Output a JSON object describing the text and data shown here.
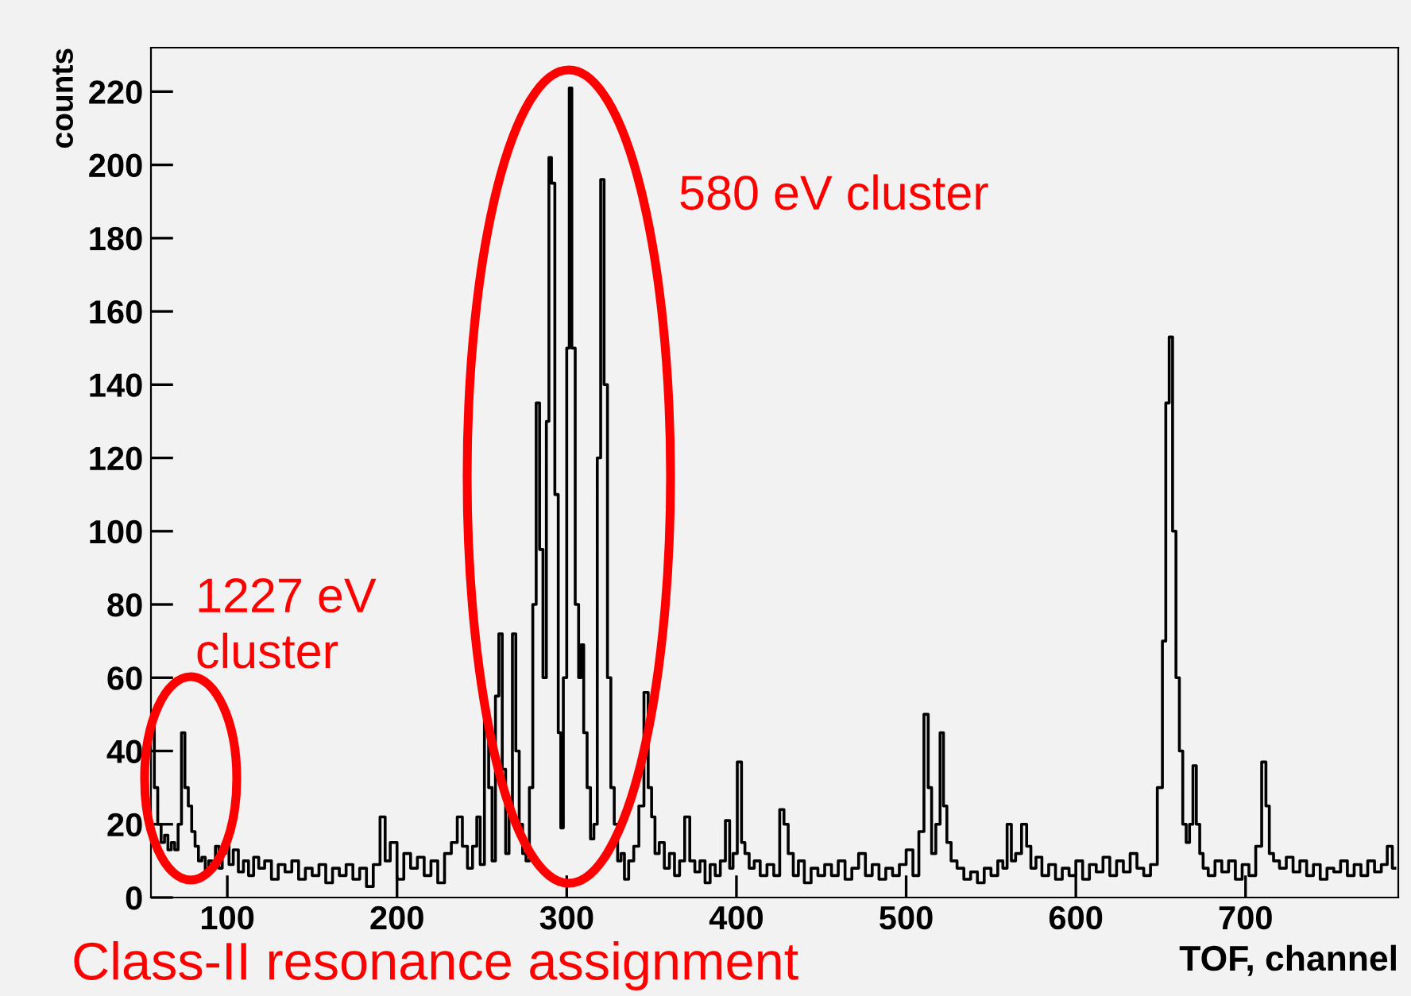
{
  "chart_data": {
    "type": "step",
    "xlabel": "TOF, channel",
    "ylabel": "counts",
    "x": [
      56,
      58,
      60,
      62,
      64,
      66,
      68,
      70,
      72,
      74,
      76,
      78,
      80,
      82,
      84,
      86,
      88,
      90,
      92,
      94,
      96,
      98,
      100,
      102,
      105,
      108,
      111,
      114,
      117,
      120,
      124,
      128,
      132,
      136,
      140,
      144,
      148,
      152,
      156,
      160,
      164,
      168,
      172,
      176,
      180,
      184,
      188,
      192,
      194,
      198,
      202,
      206,
      210,
      214,
      218,
      222,
      226,
      230,
      234,
      237,
      240,
      243,
      246,
      248,
      250,
      253,
      255,
      257,
      259,
      261,
      263,
      265,
      267,
      269,
      271,
      273,
      275,
      277,
      279,
      281,
      283,
      285,
      287,
      289,
      290,
      292,
      294,
      296,
      297,
      299,
      301,
      302,
      304,
      306,
      308,
      309,
      311,
      313,
      315,
      317,
      319,
      321,
      323,
      325,
      327,
      329,
      331,
      333,
      335,
      338,
      341,
      344,
      347,
      349,
      351,
      353,
      356,
      359,
      362,
      365,
      368,
      371,
      374,
      377,
      380,
      383,
      386,
      389,
      392,
      395,
      397,
      399,
      402,
      404,
      406,
      409,
      412,
      416,
      420,
      424,
      427,
      429,
      432,
      435,
      438,
      442,
      446,
      450,
      454,
      458,
      462,
      466,
      470,
      474,
      478,
      482,
      486,
      490,
      494,
      498,
      502,
      506,
      509,
      512,
      514,
      516,
      519,
      521,
      523,
      525,
      528,
      532,
      536,
      540,
      544,
      548,
      552,
      556,
      558,
      561,
      563,
      566,
      570,
      572,
      575,
      578,
      582,
      586,
      590,
      594,
      598,
      602,
      606,
      610,
      614,
      618,
      622,
      626,
      630,
      634,
      638,
      642,
      646,
      650,
      652,
      654,
      656,
      658,
      660,
      662,
      664,
      666,
      668,
      670,
      672,
      674,
      676,
      680,
      684,
      688,
      692,
      696,
      700,
      704,
      708,
      711,
      713,
      715,
      718,
      722,
      726,
      730,
      734,
      738,
      742,
      746,
      750,
      754,
      758,
      762,
      766,
      770,
      774,
      778,
      782,
      785,
      788
    ],
    "series": [
      {
        "color": "#000000",
        "values": [
          48,
          30,
          20,
          15,
          17,
          13,
          15,
          13,
          20,
          45,
          30,
          25,
          18,
          14,
          10,
          11,
          7,
          10,
          9,
          14,
          8,
          12,
          15,
          9,
          13,
          7,
          10,
          6,
          11,
          8,
          10,
          5,
          9,
          7,
          10,
          5,
          8,
          6,
          9,
          4,
          8,
          6,
          9,
          5,
          8,
          3,
          9,
          22,
          10,
          15,
          5,
          12,
          8,
          11,
          6,
          10,
          4,
          12,
          15,
          22,
          14,
          8,
          14,
          22,
          9,
          49,
          30,
          10,
          55,
          72,
          35,
          12,
          25,
          72,
          40,
          20,
          12,
          10,
          30,
          80,
          135,
          95,
          60,
          130,
          202,
          195,
          110,
          45,
          19,
          60,
          150,
          221,
          150,
          80,
          60,
          69,
          45,
          30,
          16,
          20,
          120,
          196,
          140,
          60,
          30,
          20,
          10,
          12,
          5,
          10,
          14,
          25,
          56,
          30,
          22,
          12,
          15,
          8,
          12,
          6,
          10,
          22,
          10,
          7,
          10,
          4,
          9,
          6,
          10,
          21,
          8,
          12,
          37,
          15,
          12,
          8,
          10,
          6,
          9,
          6,
          24,
          20,
          12,
          6,
          10,
          4,
          8,
          6,
          9,
          6,
          10,
          5,
          8,
          12,
          6,
          9,
          5,
          8,
          6,
          9,
          13,
          6,
          18,
          50,
          30,
          12,
          20,
          45,
          25,
          15,
          10,
          8,
          5,
          7,
          4,
          8,
          6,
          10,
          8,
          20,
          10,
          12,
          20,
          14,
          8,
          11,
          6,
          9,
          5,
          8,
          6,
          10,
          5,
          9,
          7,
          11,
          6,
          10,
          7,
          12,
          8,
          6,
          9,
          30,
          70,
          135,
          153,
          100,
          60,
          40,
          20,
          15,
          20,
          36,
          20,
          12,
          8,
          6,
          10,
          7,
          10,
          5,
          9,
          6,
          14,
          37,
          25,
          12,
          10,
          8,
          11,
          7,
          10,
          6,
          9,
          5,
          8,
          7,
          10,
          6,
          9,
          6,
          10,
          7,
          9,
          14,
          8
        ]
      }
    ],
    "xlim": [
      55,
      790
    ],
    "ylim": [
      0,
      232
    ],
    "xticks": [
      100,
      200,
      300,
      400,
      500,
      600,
      700
    ],
    "yticks": [
      0,
      20,
      40,
      60,
      80,
      100,
      120,
      140,
      160,
      180,
      200,
      220
    ],
    "grid": false,
    "legend": false,
    "annotations": [
      "1227 eV\ncluster",
      "580 eV cluster",
      "Class-II resonance assignment"
    ]
  }
}
